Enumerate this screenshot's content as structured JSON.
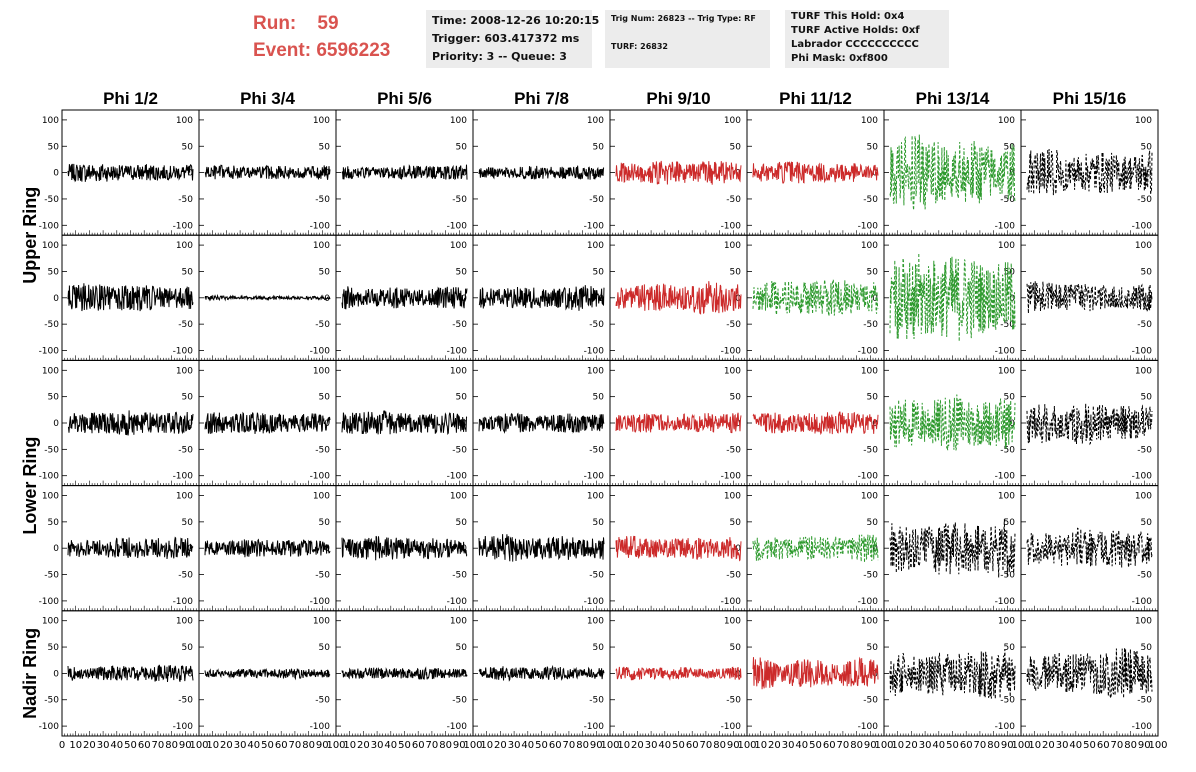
{
  "header": {
    "run_label": "Run:",
    "run_value": "59",
    "event_label": "Event:",
    "event_value": "6596223",
    "time": "Time: 2008-12-26 10:20:15",
    "trigger": "Trigger: 603.417372 ms",
    "priority": "Priority: 3 -- Queue: 3",
    "trig_num": "Trig Num: 26823 -- Trig Type: RF",
    "turf": "TURF: 26832",
    "turf_this_hold": "TURF This Hold: 0x4",
    "turf_active_holds": "TURF Active Holds: 0xf",
    "labrador": "Labrador CCCCCCCCCC",
    "phi_mask": "Phi Mask: 0xf800",
    "accent_color": "#d9534f"
  },
  "chart_data": {
    "type": "line",
    "columns": [
      "Phi 1/2",
      "Phi 3/4",
      "Phi 5/6",
      "Phi 7/8",
      "Phi 9/10",
      "Phi 11/12",
      "Phi 13/14",
      "Phi 15/16"
    ],
    "ring_labels": [
      {
        "text": "Upper Ring",
        "spans_rows": [
          0,
          1
        ]
      },
      {
        "text": "Lower Ring",
        "spans_rows": [
          2,
          3
        ]
      },
      {
        "text": "Nadir Ring",
        "spans_rows": [
          4
        ]
      }
    ],
    "xlim": [
      0,
      100
    ],
    "ylim": [
      -115,
      115
    ],
    "yticks": [
      -100,
      -50,
      0,
      50,
      100
    ],
    "xticks": [
      0,
      10,
      20,
      30,
      40,
      50,
      60,
      70,
      80,
      90,
      100
    ],
    "colors": {
      "black": "#000000",
      "red": "#cc2a2a",
      "green": "#2e9a2e"
    },
    "panels": [
      [
        {
          "color": "black",
          "dashed": false,
          "amplitude": 20
        },
        {
          "color": "black",
          "dashed": false,
          "amplitude": 16
        },
        {
          "color": "black",
          "dashed": false,
          "amplitude": 16
        },
        {
          "color": "black",
          "dashed": false,
          "amplitude": 14
        },
        {
          "color": "red",
          "dashed": false,
          "amplitude": 24
        },
        {
          "color": "red",
          "dashed": false,
          "amplitude": 22
        },
        {
          "color": "green",
          "dashed": true,
          "amplitude": 75
        },
        {
          "color": "black",
          "dashed": true,
          "amplitude": 50
        }
      ],
      [
        {
          "color": "black",
          "dashed": false,
          "amplitude": 28
        },
        {
          "color": "black",
          "dashed": false,
          "amplitude": 4
        },
        {
          "color": "black",
          "dashed": false,
          "amplitude": 24
        },
        {
          "color": "black",
          "dashed": false,
          "amplitude": 26
        },
        {
          "color": "red",
          "dashed": false,
          "amplitude": 32
        },
        {
          "color": "green",
          "dashed": true,
          "amplitude": 38
        },
        {
          "color": "green",
          "dashed": true,
          "amplitude": 90
        },
        {
          "color": "black",
          "dashed": true,
          "amplitude": 32
        }
      ],
      [
        {
          "color": "black",
          "dashed": false,
          "amplitude": 24
        },
        {
          "color": "black",
          "dashed": false,
          "amplitude": 22
        },
        {
          "color": "black",
          "dashed": false,
          "amplitude": 26
        },
        {
          "color": "black",
          "dashed": false,
          "amplitude": 22
        },
        {
          "color": "red",
          "dashed": false,
          "amplitude": 22
        },
        {
          "color": "red",
          "dashed": false,
          "amplitude": 24
        },
        {
          "color": "green",
          "dashed": true,
          "amplitude": 55
        },
        {
          "color": "black",
          "dashed": true,
          "amplitude": 42
        }
      ],
      [
        {
          "color": "black",
          "dashed": false,
          "amplitude": 22
        },
        {
          "color": "black",
          "dashed": false,
          "amplitude": 18
        },
        {
          "color": "black",
          "dashed": false,
          "amplitude": 24
        },
        {
          "color": "black",
          "dashed": false,
          "amplitude": 28
        },
        {
          "color": "red",
          "dashed": false,
          "amplitude": 26
        },
        {
          "color": "green",
          "dashed": true,
          "amplitude": 30
        },
        {
          "color": "black",
          "dashed": true,
          "amplitude": 58
        },
        {
          "color": "black",
          "dashed": true,
          "amplitude": 40
        }
      ],
      [
        {
          "color": "black",
          "dashed": false,
          "amplitude": 18
        },
        {
          "color": "black",
          "dashed": false,
          "amplitude": 10
        },
        {
          "color": "black",
          "dashed": false,
          "amplitude": 12
        },
        {
          "color": "black",
          "dashed": false,
          "amplitude": 14
        },
        {
          "color": "red",
          "dashed": false,
          "amplitude": 14
        },
        {
          "color": "red",
          "dashed": false,
          "amplitude": 34
        },
        {
          "color": "black",
          "dashed": true,
          "amplitude": 55
        },
        {
          "color": "black",
          "dashed": true,
          "amplitude": 50
        }
      ]
    ]
  }
}
